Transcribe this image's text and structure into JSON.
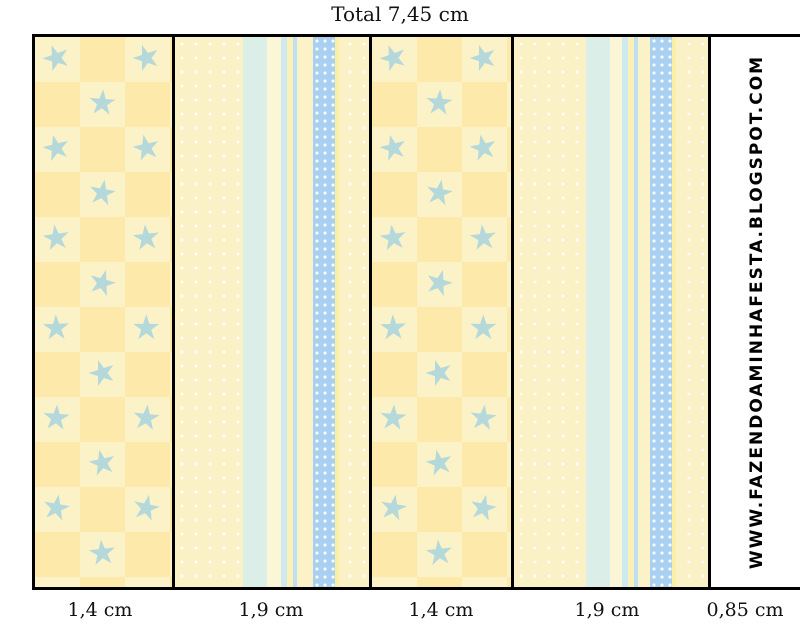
{
  "header": {
    "total_label": "Total 7,45 cm"
  },
  "brand": {
    "text": "WWW.FAZENDOAMINHAFESTA.BLOGSPOT.COM"
  },
  "dimensions": [
    "1,4 cm",
    "1,9 cm",
    "1,4 cm",
    "1,9 cm",
    "0,85 cm"
  ],
  "colors": {
    "cream": "#fbf2c8",
    "yellow": "#fde9a9",
    "star_blue": "#a9d5de",
    "light_blue": "#cfe9f0",
    "stripe_blue": "#a9cff1",
    "border": "#000000"
  },
  "panels": [
    {
      "pattern": "stars-checker"
    },
    {
      "pattern": "stripes-dots"
    },
    {
      "pattern": "stars-checker"
    },
    {
      "pattern": "stripes-dots"
    },
    {
      "pattern": "blank-brand"
    }
  ]
}
